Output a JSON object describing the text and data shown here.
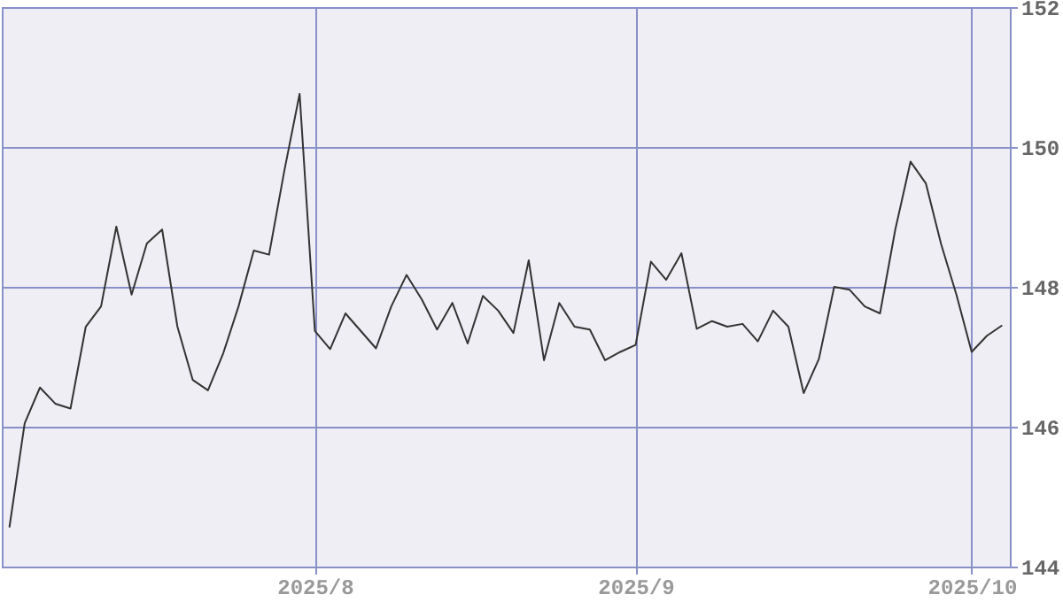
{
  "chart_data": {
    "type": "line",
    "categories": [
      null,
      null,
      null,
      null,
      null,
      null,
      null,
      null,
      null,
      null,
      null,
      null,
      null,
      null,
      null,
      null,
      null,
      null,
      null,
      null,
      "2025/8",
      null,
      null,
      null,
      null,
      null,
      null,
      null,
      null,
      null,
      null,
      null,
      null,
      null,
      null,
      null,
      null,
      null,
      null,
      null,
      null,
      "2025/9",
      null,
      null,
      null,
      null,
      null,
      null,
      null,
      null,
      null,
      null,
      null,
      null,
      null,
      null,
      null,
      null,
      null,
      null,
      null,
      null,
      null,
      "2025/10",
      null,
      null
    ],
    "series": [
      {
        "color": "#333333",
        "values": [
          144.56,
          146.05,
          146.56,
          146.33,
          146.26,
          147.43,
          147.72,
          148.86,
          147.89,
          148.62,
          148.82,
          147.43,
          146.67,
          146.52,
          147.05,
          147.72,
          148.52,
          148.46,
          149.66,
          150.76,
          147.37,
          147.11,
          147.62,
          147.37,
          147.12,
          147.72,
          148.17,
          147.82,
          147.39,
          147.77,
          147.19,
          147.87,
          147.66,
          147.34,
          148.38,
          146.95,
          147.77,
          147.43,
          147.39,
          146.95,
          147.07,
          147.17,
          148.36,
          148.1,
          148.48,
          147.4,
          147.51,
          147.43,
          147.47,
          147.22,
          147.66,
          147.43,
          146.48,
          146.97,
          148.0,
          147.96,
          147.72,
          147.62,
          148.82,
          149.79,
          149.48,
          148.61,
          147.89,
          147.07,
          147.3,
          147.45
        ]
      }
    ],
    "ylim": [
      144,
      152
    ],
    "yticks": [
      144,
      146,
      148,
      150,
      152
    ],
    "grid": true,
    "marker": "none",
    "line_style": "solid"
  }
}
